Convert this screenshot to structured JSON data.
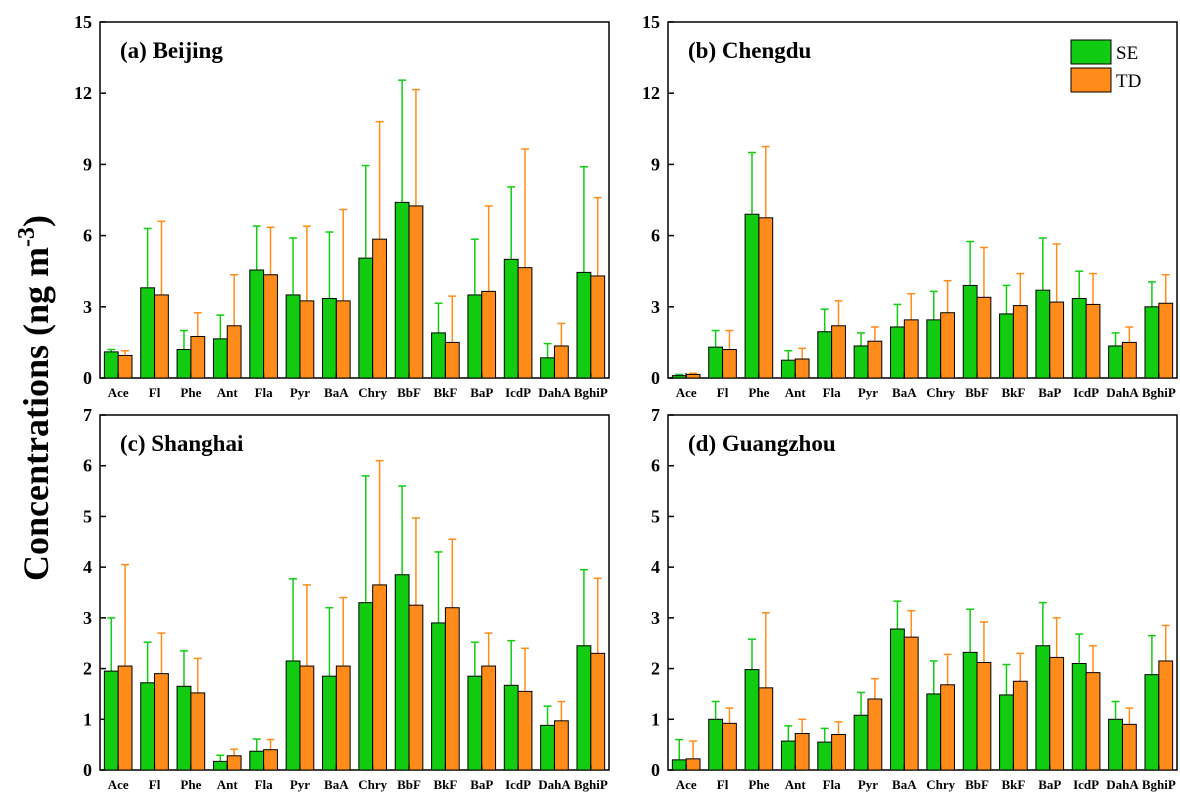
{
  "figure": {
    "ylabel_main": "Concentrations (ng m",
    "ylabel_sup": "-3",
    "ylabel_close": ")"
  },
  "colors": {
    "SE": "#11cc11",
    "TD": "#ff8c1a"
  },
  "legend": {
    "items": [
      "SE",
      "TD"
    ]
  },
  "chart_data": [
    {
      "type": "bar",
      "title": "(a) Beijing",
      "categories": [
        "Ace",
        "Fl",
        "Phe",
        "Ant",
        "Fla",
        "Pyr",
        "BaA",
        "Chry",
        "BbF",
        "BkF",
        "BaP",
        "IcdP",
        "DahA",
        "BghiP"
      ],
      "ylim": [
        0,
        15
      ],
      "yticks": [
        0,
        3,
        6,
        9,
        12,
        15
      ],
      "series": [
        {
          "name": "SE",
          "values": [
            1.1,
            3.8,
            1.2,
            1.65,
            4.55,
            3.5,
            3.35,
            5.05,
            7.4,
            1.9,
            3.5,
            5.0,
            0.85,
            4.45
          ],
          "error": [
            0.1,
            2.5,
            0.8,
            1.0,
            1.85,
            2.4,
            2.8,
            3.9,
            5.15,
            1.25,
            2.35,
            3.05,
            0.6,
            4.45
          ]
        },
        {
          "name": "TD",
          "values": [
            0.95,
            3.5,
            1.75,
            2.2,
            4.35,
            3.25,
            3.25,
            5.85,
            7.25,
            1.5,
            3.65,
            4.65,
            1.35,
            4.3
          ],
          "error": [
            0.2,
            3.1,
            1.0,
            2.15,
            2.0,
            3.15,
            3.85,
            4.95,
            4.9,
            1.95,
            3.6,
            5.0,
            0.95,
            3.3
          ]
        }
      ]
    },
    {
      "type": "bar",
      "title": "(b) Chengdu",
      "categories": [
        "Ace",
        "Fl",
        "Phe",
        "Ant",
        "Fla",
        "Pyr",
        "BaA",
        "Chry",
        "BbF",
        "BkF",
        "BaP",
        "IcdP",
        "DahA",
        "BghiP"
      ],
      "ylim": [
        0,
        15
      ],
      "yticks": [
        0,
        3,
        6,
        9,
        12,
        15
      ],
      "series": [
        {
          "name": "SE",
          "values": [
            0.1,
            1.3,
            6.9,
            0.75,
            1.95,
            1.35,
            2.15,
            2.45,
            3.9,
            2.7,
            3.7,
            3.35,
            1.35,
            3.0
          ],
          "error": [
            0.05,
            0.7,
            2.6,
            0.4,
            0.95,
            0.55,
            0.95,
            1.2,
            1.85,
            1.2,
            2.2,
            1.15,
            0.55,
            1.05
          ]
        },
        {
          "name": "TD",
          "values": [
            0.15,
            1.2,
            6.75,
            0.8,
            2.2,
            1.55,
            2.45,
            2.75,
            3.4,
            3.05,
            3.2,
            3.1,
            1.5,
            3.15
          ],
          "error": [
            0.05,
            0.8,
            3.0,
            0.45,
            1.05,
            0.6,
            1.1,
            1.35,
            2.1,
            1.35,
            2.45,
            1.3,
            0.65,
            1.2
          ]
        }
      ]
    },
    {
      "type": "bar",
      "title": "(c) Shanghai",
      "categories": [
        "Ace",
        "Fl",
        "Phe",
        "Ant",
        "Fla",
        "Pyr",
        "BaA",
        "Chry",
        "BbF",
        "BkF",
        "BaP",
        "IcdP",
        "DahA",
        "BghiP"
      ],
      "ylim": [
        0,
        7
      ],
      "yticks": [
        0,
        1,
        2,
        3,
        4,
        5,
        6,
        7
      ],
      "series": [
        {
          "name": "SE",
          "values": [
            1.95,
            1.72,
            1.65,
            0.17,
            0.37,
            2.15,
            1.85,
            3.3,
            3.85,
            2.9,
            1.85,
            1.67,
            0.88,
            2.45
          ],
          "error": [
            1.05,
            0.8,
            0.7,
            0.12,
            0.24,
            1.62,
            1.35,
            2.5,
            1.75,
            1.4,
            0.67,
            0.88,
            0.38,
            1.5
          ]
        },
        {
          "name": "TD",
          "values": [
            2.05,
            1.9,
            1.52,
            0.28,
            0.4,
            2.05,
            2.05,
            3.65,
            3.25,
            3.2,
            2.05,
            1.55,
            0.97,
            2.3
          ],
          "error": [
            2.0,
            0.8,
            0.68,
            0.13,
            0.2,
            1.6,
            1.35,
            2.45,
            1.72,
            1.35,
            0.65,
            0.85,
            0.38,
            1.48
          ]
        }
      ]
    },
    {
      "type": "bar",
      "title": "(d) Guangzhou",
      "categories": [
        "Ace",
        "Fl",
        "Phe",
        "Ant",
        "Fla",
        "Pyr",
        "BaA",
        "Chry",
        "BbF",
        "BkF",
        "BaP",
        "IcdP",
        "DahA",
        "BghiP"
      ],
      "ylim": [
        0,
        7
      ],
      "yticks": [
        0,
        1,
        2,
        3,
        4,
        5,
        6,
        7
      ],
      "series": [
        {
          "name": "SE",
          "values": [
            0.2,
            1.0,
            1.98,
            0.57,
            0.55,
            1.08,
            2.78,
            1.5,
            2.32,
            1.48,
            2.45,
            2.1,
            1.0,
            1.88
          ],
          "error": [
            0.4,
            0.35,
            0.6,
            0.3,
            0.27,
            0.45,
            0.55,
            0.65,
            0.85,
            0.6,
            0.85,
            0.58,
            0.35,
            0.77
          ]
        },
        {
          "name": "TD",
          "values": [
            0.22,
            0.92,
            1.62,
            0.72,
            0.7,
            1.4,
            2.62,
            1.68,
            2.12,
            1.75,
            2.22,
            1.92,
            0.9,
            2.15
          ],
          "error": [
            0.35,
            0.3,
            1.48,
            0.28,
            0.25,
            0.4,
            0.52,
            0.6,
            0.8,
            0.55,
            0.78,
            0.53,
            0.32,
            0.7
          ]
        }
      ]
    }
  ]
}
